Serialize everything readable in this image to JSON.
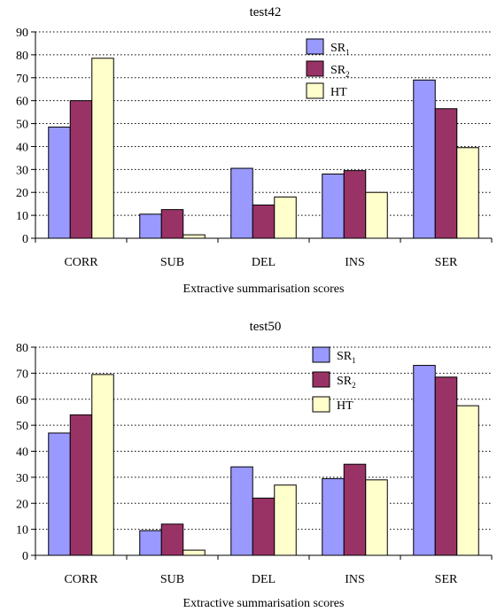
{
  "chart_data": [
    {
      "type": "bar",
      "title": "test42",
      "xlabel": "Extractive summarisation scores",
      "ylabel": "",
      "categories": [
        "CORR",
        "SUB",
        "DEL",
        "INS",
        "SER"
      ],
      "ylim": [
        0,
        90
      ],
      "yticks": [
        0,
        10,
        20,
        30,
        40,
        50,
        60,
        70,
        80,
        90
      ],
      "grid": true,
      "legend_position": "top-right",
      "series": [
        {
          "name": "SR",
          "sub": "1",
          "color": "#9999ff",
          "values": [
            48.5,
            10.5,
            30.5,
            28,
            69
          ]
        },
        {
          "name": "SR",
          "sub": "2",
          "color": "#993366",
          "values": [
            60,
            12.5,
            14.5,
            29.5,
            56.5
          ]
        },
        {
          "name": "HT",
          "sub": "",
          "color": "#ffffcc",
          "values": [
            78.5,
            1.5,
            18,
            20,
            39.5
          ]
        }
      ]
    },
    {
      "type": "bar",
      "title": "test50",
      "xlabel": "Extractive summarisation scores",
      "ylabel": "",
      "categories": [
        "CORR",
        "SUB",
        "DEL",
        "INS",
        "SER"
      ],
      "ylim": [
        0,
        80
      ],
      "yticks": [
        0,
        10,
        20,
        30,
        40,
        50,
        60,
        70,
        80
      ],
      "grid": true,
      "legend_position": "top-right",
      "series": [
        {
          "name": "SR",
          "sub": "1",
          "color": "#9999ff",
          "values": [
            47,
            9.5,
            34,
            29.5,
            73
          ]
        },
        {
          "name": "SR",
          "sub": "2",
          "color": "#993366",
          "values": [
            54,
            12,
            22,
            35,
            68.5
          ]
        },
        {
          "name": "HT",
          "sub": "",
          "color": "#ffffcc",
          "values": [
            69.5,
            2,
            27,
            29,
            57.5
          ]
        }
      ]
    }
  ]
}
